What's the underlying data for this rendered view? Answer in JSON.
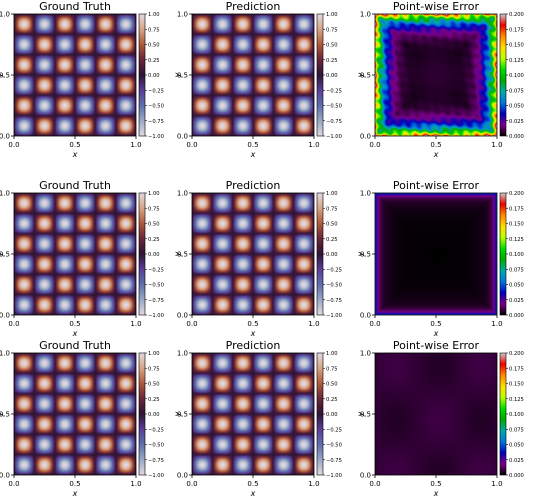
{
  "figure": {
    "rows": [
      {
        "panels": [
          {
            "title": "Ground Truth",
            "xlabel": "x",
            "ylabel": "y",
            "xticks": [
              "0.0",
              "0.5",
              "1.0"
            ],
            "yticks": [
              "0.0",
              "0.5",
              "1.0"
            ],
            "colorbar_ticks": [
              "1.00",
              "0.75",
              "0.50",
              "0.25",
              "0.00",
              "−0.25",
              "−0.50",
              "−0.75",
              "−1.00"
            ]
          },
          {
            "title": "Prediction",
            "xlabel": "x",
            "ylabel": "y",
            "xticks": [
              "0.0",
              "0.5",
              "1.0"
            ],
            "yticks": [
              "0.0",
              "0.5",
              "1.0"
            ],
            "colorbar_ticks": [
              "1.00",
              "0.75",
              "0.50",
              "0.25",
              "0.00",
              "−0.25",
              "−0.50",
              "−0.75",
              "−1.00"
            ]
          },
          {
            "title": "Point-wise Error",
            "xlabel": "x",
            "ylabel": "y",
            "xticks": [
              "0.0",
              "0.5",
              "1.0"
            ],
            "yticks": [
              "0.0",
              "0.5",
              "1.0"
            ],
            "colorbar_ticks": [
              "0.200",
              "0.175",
              "0.150",
              "0.125",
              "0.100",
              "0.075",
              "0.050",
              "0.025",
              "0.000"
            ]
          }
        ]
      },
      {
        "panels": [
          {
            "title": "Ground Truth",
            "xlabel": "x",
            "ylabel": "y",
            "xticks": [
              "0.0",
              "0.5",
              "1.0"
            ],
            "yticks": [
              "0.0",
              "0.5",
              "1.0"
            ],
            "colorbar_ticks": [
              "1.00",
              "0.75",
              "0.50",
              "0.25",
              "0.00",
              "−0.25",
              "−0.50",
              "−0.75",
              "−1.00"
            ]
          },
          {
            "title": "Prediction",
            "xlabel": "x",
            "ylabel": "y",
            "xticks": [
              "0.0",
              "0.5",
              "1.0"
            ],
            "yticks": [
              "0.0",
              "0.5",
              "1.0"
            ],
            "colorbar_ticks": [
              "1.00",
              "0.75",
              "0.50",
              "0.25",
              "0.00",
              "−0.25",
              "−0.50",
              "−0.75",
              "−1.00"
            ]
          },
          {
            "title": "Point-wise Error",
            "xlabel": "x",
            "ylabel": "y",
            "xticks": [
              "0.0",
              "0.5",
              "1.0"
            ],
            "yticks": [
              "0.0",
              "0.5",
              "1.0"
            ],
            "colorbar_ticks": [
              "0.200",
              "0.175",
              "0.150",
              "0.125",
              "0.100",
              "0.075",
              "0.050",
              "0.025",
              "0.000"
            ]
          }
        ]
      },
      {
        "panels": [
          {
            "title": "Ground Truth",
            "xlabel": "x",
            "ylabel": "y",
            "xticks": [
              "0.0",
              "0.5",
              "1.0"
            ],
            "yticks": [
              "0.0",
              "0.5",
              "1.0"
            ],
            "colorbar_ticks": [
              "1.00",
              "0.75",
              "0.50",
              "0.25",
              "0.00",
              "−0.25",
              "−0.50",
              "−0.75",
              "−1.00"
            ]
          },
          {
            "title": "Prediction",
            "xlabel": "x",
            "ylabel": "y",
            "xticks": [
              "0.0",
              "0.5",
              "1.0"
            ],
            "yticks": [
              "0.0",
              "0.5",
              "1.0"
            ],
            "colorbar_ticks": [
              "1.00",
              "0.75",
              "0.50",
              "0.25",
              "0.00",
              "−0.25",
              "−0.50",
              "−0.75",
              "−1.00"
            ]
          },
          {
            "title": "Point-wise Error",
            "xlabel": "x",
            "ylabel": "y",
            "xticks": [
              "0.0",
              "0.5",
              "1.0"
            ],
            "yticks": [
              "0.0",
              "0.5",
              "1.0"
            ],
            "colorbar_ticks": [
              "0.200",
              "0.175",
              "0.150",
              "0.125",
              "0.100",
              "0.075",
              "0.050",
              "0.025",
              "0.000"
            ]
          }
        ]
      }
    ]
  },
  "chart_data": [
    {
      "type": "heatmap",
      "title": "Ground Truth",
      "xlabel": "x",
      "ylabel": "y",
      "xlim": [
        0,
        1
      ],
      "ylim": [
        0,
        1
      ],
      "colorbar_range": [
        -1.0,
        1.0
      ],
      "colormap": "twilight",
      "pattern": "checkerboard of alternating maxima and minima",
      "cells_per_axis": 6
    },
    {
      "type": "heatmap",
      "title": "Prediction",
      "xlabel": "x",
      "ylabel": "y",
      "xlim": [
        0,
        1
      ],
      "ylim": [
        0,
        1
      ],
      "colorbar_range": [
        -1.0,
        1.0
      ],
      "colormap": "twilight",
      "pattern": "checkerboard of alternating maxima and minima",
      "cells_per_axis": 6
    },
    {
      "type": "heatmap",
      "title": "Point-wise Error",
      "xlabel": "x",
      "ylabel": "y",
      "xlim": [
        0,
        1
      ],
      "ylim": [
        0,
        1
      ],
      "colorbar_range": [
        0.0,
        0.2
      ],
      "colormap": "nipy_spectral",
      "error_level": "high",
      "pattern": "errors concentrated along the boundary, dark interior"
    },
    {
      "type": "heatmap",
      "title": "Ground Truth",
      "xlabel": "x",
      "ylabel": "y",
      "xlim": [
        0,
        1
      ],
      "ylim": [
        0,
        1
      ],
      "colorbar_range": [
        -1.0,
        1.0
      ],
      "colormap": "twilight",
      "pattern": "checkerboard of alternating maxima and minima",
      "cells_per_axis": 6
    },
    {
      "type": "heatmap",
      "title": "Prediction",
      "xlabel": "x",
      "ylabel": "y",
      "xlim": [
        0,
        1
      ],
      "ylim": [
        0,
        1
      ],
      "colorbar_range": [
        -1.0,
        1.0
      ],
      "colormap": "twilight",
      "pattern": "checkerboard of alternating maxima and minima",
      "cells_per_axis": 6
    },
    {
      "type": "heatmap",
      "title": "Point-wise Error",
      "xlabel": "x",
      "ylabel": "y",
      "xlim": [
        0,
        1
      ],
      "ylim": [
        0,
        1
      ],
      "colorbar_range": [
        0.0,
        0.2
      ],
      "colormap": "nipy_spectral",
      "error_level": "medium",
      "pattern": "small errors near the boundary, dark interior"
    },
    {
      "type": "heatmap",
      "title": "Ground Truth",
      "xlabel": "x",
      "ylabel": "y",
      "xlim": [
        0,
        1
      ],
      "ylim": [
        0,
        1
      ],
      "colorbar_range": [
        -1.0,
        1.0
      ],
      "colormap": "twilight",
      "pattern": "checkerboard of alternating maxima and minima",
      "cells_per_axis": 6
    },
    {
      "type": "heatmap",
      "title": "Prediction",
      "xlabel": "x",
      "ylabel": "y",
      "xlim": [
        0,
        1
      ],
      "ylim": [
        0,
        1
      ],
      "colorbar_range": [
        -1.0,
        1.0
      ],
      "colormap": "twilight",
      "pattern": "checkerboard of alternating maxima and minima",
      "cells_per_axis": 6
    },
    {
      "type": "heatmap",
      "title": "Point-wise Error",
      "xlabel": "x",
      "ylabel": "y",
      "xlim": [
        0,
        1
      ],
      "ylim": [
        0,
        1
      ],
      "colorbar_range": [
        0.0,
        0.2
      ],
      "colormap": "nipy_spectral",
      "error_level": "low",
      "pattern": "near-zero error everywhere, faint dark-purple patches"
    }
  ],
  "colors": {
    "twilight_stops": [
      "#e2d9e2",
      "#9aa9c5",
      "#5e6fb0",
      "#5b3e97",
      "#2f1436",
      "#6a2538",
      "#b05a3a",
      "#d9a485",
      "#e2d9e2"
    ],
    "spectral_stops": [
      "#000000",
      "#7d0089",
      "#0000bb",
      "#0077dd",
      "#00a9a9",
      "#00aa00",
      "#00dd00",
      "#bbff00",
      "#ffdd00",
      "#ff8800",
      "#ee0000",
      "#cccccc"
    ]
  }
}
